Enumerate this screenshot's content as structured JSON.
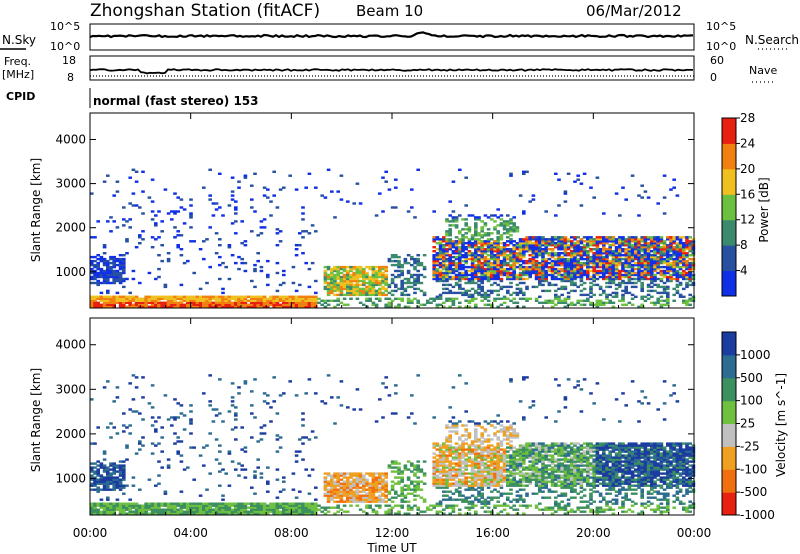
{
  "header": {
    "station_title": "Zhongshan Station (fitACF)",
    "beam": "Beam 10",
    "date": "06/Mar/2012"
  },
  "top_panels": {
    "nsky_label": "N.Sky",
    "nsky_tick_hi": "10^5",
    "nsky_tick_lo": "10^0",
    "nsearch_label": "N.Search",
    "nsearch_tick_hi": "10^5",
    "nsearch_tick_lo": "10^0",
    "freq_label": "Freq.",
    "freq_unit": "[MHz]",
    "freq_tick_hi": "18",
    "freq_tick_lo": "8",
    "nave_label": "Nave",
    "nave_tick_hi": "60",
    "nave_tick_lo": "0",
    "cpid_label": "CPID",
    "cpid_value": "normal (fast stereo) 153"
  },
  "chart_data": [
    {
      "type": "heatmap",
      "name": "power",
      "ylabel": "Slant Range [km]",
      "ylim": [
        180,
        4600
      ],
      "yticks": [
        "1000",
        "2000",
        "3000",
        "4000"
      ],
      "colorbar_label": "Power [dB]",
      "colorbar_ticks": [
        "4",
        "8",
        "12",
        "16",
        "20",
        "24",
        "28"
      ],
      "colorscale": [
        "#1030e8",
        "#2850a0",
        "#3c8a6e",
        "#6cc040",
        "#f0c020",
        "#f08010",
        "#e82010"
      ]
    },
    {
      "type": "heatmap",
      "name": "velocity",
      "ylabel": "Slant Range [km]",
      "ylim": [
        180,
        4600
      ],
      "yticks": [
        "1000",
        "2000",
        "3000",
        "4000"
      ],
      "colorbar_label": "Velocity [m s^-1]",
      "colorbar_ticks": [
        "1000",
        "500",
        "100",
        "25",
        "-25",
        "-100",
        "-500",
        "-1000"
      ],
      "colorscale": [
        "#1c3ca0",
        "#2c6c90",
        "#3c9060",
        "#70c040",
        "#c0c0c0",
        "#f0a020",
        "#f07010",
        "#e82010"
      ]
    }
  ],
  "xaxis": {
    "label": "Time UT",
    "ticks": [
      "00:00",
      "04:00",
      "08:00",
      "12:00",
      "16:00",
      "20:00",
      "00:00"
    ]
  }
}
